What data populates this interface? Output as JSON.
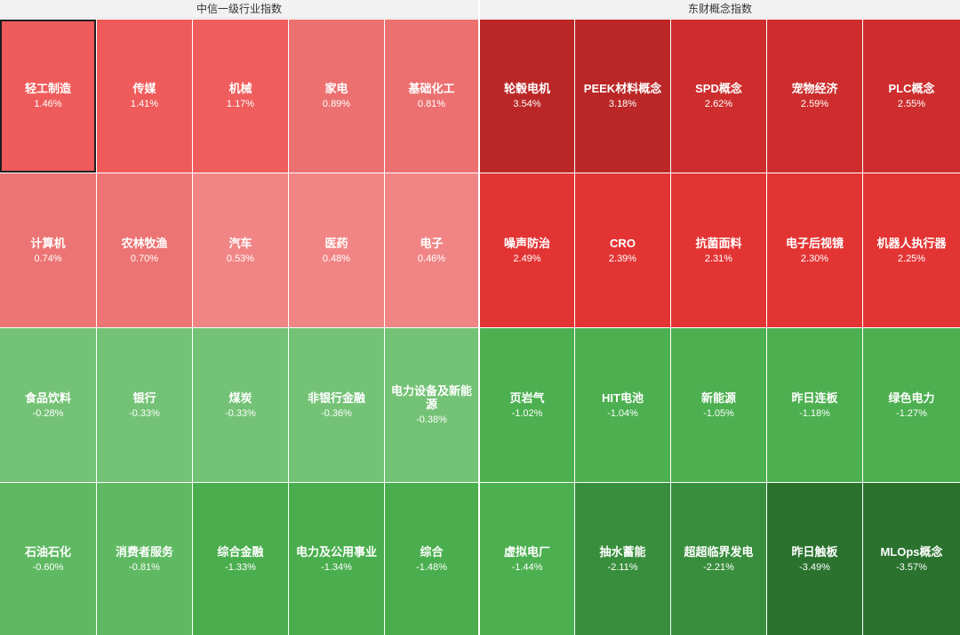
{
  "headers": {
    "left": "中信一级行业指数",
    "right": "东财概念指数"
  },
  "left_panel": {
    "title": "中信一级行业指数",
    "rows": [
      [
        {
          "name": "轻工制造",
          "change": "1.46%",
          "color": "#ef5b5b"
        },
        {
          "name": "传媒",
          "change": "1.41%",
          "color": "#ef5b5b"
        },
        {
          "name": "机械",
          "change": "1.17%",
          "color": "#ef5d5d"
        },
        {
          "name": "家电",
          "change": "0.89%",
          "color": "#ec7070"
        },
        {
          "name": "基础化工",
          "change": "0.81%",
          "color": "#ec7070"
        }
      ],
      [
        {
          "name": "计算机",
          "change": "0.74%",
          "color": "#ec7474"
        },
        {
          "name": "农林牧渔",
          "change": "0.70%",
          "color": "#ec7474"
        },
        {
          "name": "汽车",
          "change": "0.53%",
          "color": "#f18585"
        },
        {
          "name": "医药",
          "change": "0.48%",
          "color": "#f18585"
        },
        {
          "name": "电子",
          "change": "0.46%",
          "color": "#f18585"
        }
      ],
      [
        {
          "name": "食品饮料",
          "change": "-0.28%",
          "color": "#74c276"
        },
        {
          "name": "银行",
          "change": "-0.33%",
          "color": "#74c276"
        },
        {
          "name": "煤炭",
          "change": "-0.33%",
          "color": "#74c276"
        },
        {
          "name": "非银行金融",
          "change": "-0.36%",
          "color": "#74c276"
        },
        {
          "name": "电力设备及新能源",
          "change": "-0.38%",
          "color": "#74c276"
        }
      ],
      [
        {
          "name": "石油石化",
          "change": "-0.60%",
          "color": "#5fb962"
        },
        {
          "name": "消费者服务",
          "change": "-0.81%",
          "color": "#5fb962"
        },
        {
          "name": "综合金融",
          "change": "-1.33%",
          "color": "#4aae4e"
        },
        {
          "name": "电力及公用事业",
          "change": "-1.34%",
          "color": "#4aae4e"
        },
        {
          "name": "综合",
          "change": "-1.48%",
          "color": "#4aae4e"
        }
      ]
    ]
  },
  "right_panel": {
    "title": "东财概念指数",
    "rows": [
      [
        {
          "name": "轮毂电机",
          "change": "3.54%",
          "color": "#bb2727"
        },
        {
          "name": "PEEK材料概念",
          "change": "3.18%",
          "color": "#bb2727"
        },
        {
          "name": "SPD概念",
          "change": "2.62%",
          "color": "#cd2d2d"
        },
        {
          "name": "宠物经济",
          "change": "2.59%",
          "color": "#cd2d2d"
        },
        {
          "name": "PLC概念",
          "change": "2.55%",
          "color": "#cd2d2d"
        }
      ],
      [
        {
          "name": "噪声防治",
          "change": "2.49%",
          "color": "#e33434"
        },
        {
          "name": "CRO",
          "change": "2.39%",
          "color": "#e33434"
        },
        {
          "name": "抗菌面料",
          "change": "2.31%",
          "color": "#e33434"
        },
        {
          "name": "电子后视镜",
          "change": "2.30%",
          "color": "#e33434"
        },
        {
          "name": "机器人执行器",
          "change": "2.25%",
          "color": "#e33434"
        }
      ],
      [
        {
          "name": "页岩气",
          "change": "-1.02%",
          "color": "#4caf50"
        },
        {
          "name": "HIT电池",
          "change": "-1.04%",
          "color": "#4caf50"
        },
        {
          "name": "新能源",
          "change": "-1.05%",
          "color": "#4caf50"
        },
        {
          "name": "昨日连板",
          "change": "-1.18%",
          "color": "#4caf50"
        },
        {
          "name": "绿色电力",
          "change": "-1.27%",
          "color": "#4caf50"
        }
      ],
      [
        {
          "name": "虚拟电厂",
          "change": "-1.44%",
          "color": "#4caf50"
        },
        {
          "name": "抽水蓄能",
          "change": "-2.11%",
          "color": "#398e3d"
        },
        {
          "name": "超超临界发电",
          "change": "-2.21%",
          "color": "#398e3d"
        },
        {
          "name": "昨日触板",
          "change": "-3.49%",
          "color": "#2a722e"
        },
        {
          "name": "MLOps概念",
          "change": "-3.57%",
          "color": "#2a722e"
        }
      ]
    ]
  },
  "selected_tile": "轻工制造"
}
